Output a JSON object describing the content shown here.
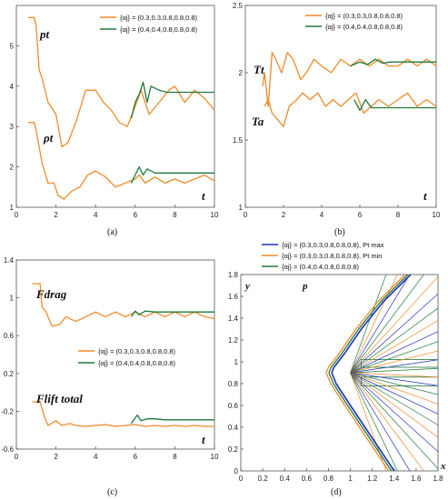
{
  "colors": {
    "orange": "#f08a2a",
    "green": "#1e7a3a",
    "blue": "#1f2fb8",
    "frame": "#555555"
  },
  "legend_ab": [
    "{αj} = (0.3,0.3,0.8,0.8,0.8)",
    "{αj} = (0.4,0.4,0.8,0.8,0.8)"
  ],
  "legend_c": [
    "{αj} = (0.3,0.3,0.8,0.8,0.8)",
    "{αj} = (0.4,0.4,0.8,0.8,0.8)"
  ],
  "legend_d": [
    "{αj} = (0.3,0.3,0.8,0.8,0.8), Pt max",
    "{αj} = (0.3,0.3,0.8,0.8,0.8), Pt min",
    "{αj} = (0.4,0.4,0.8,0.8,0.8)"
  ],
  "chart_data": [
    {
      "id": "a",
      "type": "line",
      "caption": "(a)",
      "xlabel": "t",
      "ylabel": "",
      "xlim": [
        0,
        10
      ],
      "ylim": [
        1,
        6
      ],
      "xticks": [
        "0",
        "2",
        "4",
        "6",
        "8",
        "10"
      ],
      "yticks": [
        "1",
        "2",
        "3",
        "4",
        "5"
      ],
      "annotations": [
        "pt",
        "ρt"
      ],
      "series": [
        {
          "name": "{αj} = (0.3,0.3,0.8,0.8,0.8)",
          "color": "orange",
          "curve": "pt",
          "x": [
            0.6,
            0.9,
            1.0,
            1.15,
            1.3,
            1.6,
            2.0,
            2.3,
            2.6,
            3.0,
            3.5,
            4.0,
            4.4,
            4.8,
            5.2,
            5.6,
            6.0,
            6.3,
            6.7,
            7.2,
            7.7,
            8.0,
            8.5,
            9.0,
            9.5,
            10.0
          ],
          "y": [
            5.7,
            5.7,
            5.5,
            4.4,
            4.2,
            3.6,
            3.3,
            2.5,
            2.6,
            3.1,
            3.9,
            3.9,
            3.6,
            3.4,
            3.1,
            3.0,
            3.5,
            3.9,
            3.3,
            3.6,
            3.9,
            4.0,
            3.6,
            3.9,
            3.7,
            3.4
          ]
        },
        {
          "name": "{αj} = (0.4,0.4,0.8,0.8,0.8)",
          "color": "green",
          "curve": "pt",
          "x": [
            5.8,
            6.0,
            6.2,
            6.4,
            6.6,
            6.8,
            7.2,
            7.6,
            8.0,
            8.5,
            9.0,
            10.0
          ],
          "y": [
            3.2,
            3.6,
            3.8,
            4.1,
            3.6,
            4.0,
            3.9,
            3.85,
            3.85,
            3.85,
            3.85,
            3.85
          ]
        },
        {
          "name": "{αj} = (0.3,0.3,0.8,0.8,0.8)",
          "color": "orange",
          "curve": "rho",
          "x": [
            0.6,
            0.9,
            1.0,
            1.3,
            1.6,
            1.9,
            2.1,
            2.4,
            2.8,
            3.2,
            3.6,
            4.0,
            4.5,
            5.0,
            5.5,
            6.0,
            6.2,
            6.5,
            7.0,
            7.5,
            8.0,
            8.5,
            9.0,
            9.5,
            10.0
          ],
          "y": [
            3.1,
            3.1,
            2.9,
            2.1,
            1.6,
            1.6,
            1.3,
            1.2,
            1.4,
            1.5,
            1.8,
            1.9,
            1.75,
            1.5,
            1.6,
            1.7,
            1.8,
            1.6,
            1.75,
            1.6,
            1.7,
            1.6,
            1.7,
            1.8,
            1.65
          ]
        },
        {
          "name": "{αj} = (0.4,0.4,0.8,0.8,0.8)",
          "color": "green",
          "curve": "rho",
          "x": [
            5.8,
            6.0,
            6.2,
            6.4,
            6.6,
            7.0,
            7.5,
            8.0,
            9.0,
            10.0
          ],
          "y": [
            1.6,
            1.8,
            2.0,
            1.8,
            1.95,
            1.85,
            1.85,
            1.85,
            1.85,
            1.85
          ]
        }
      ]
    },
    {
      "id": "b",
      "type": "line",
      "caption": "(b)",
      "xlabel": "t",
      "ylabel": "",
      "xlim": [
        0,
        10
      ],
      "ylim": [
        1,
        2.5
      ],
      "xticks": [
        "0",
        "2",
        "4",
        "6",
        "8",
        "10"
      ],
      "yticks": [
        "1",
        "1.5",
        "2",
        "2.5"
      ],
      "annotations": [
        "Tt",
        "Ta"
      ],
      "series": [
        {
          "name": "{αj} = (0.3,0.3,0.8,0.8,0.8)",
          "color": "orange",
          "curve": "Tt",
          "x": [
            0.9,
            1.0,
            1.2,
            1.4,
            1.6,
            1.9,
            2.2,
            2.5,
            2.9,
            3.2,
            3.6,
            4.0,
            4.5,
            5.0,
            5.5,
            6.0,
            6.5,
            7.0,
            7.5,
            8.0,
            8.5,
            9.0,
            9.5,
            10.0
          ],
          "y": [
            1.9,
            2.0,
            1.75,
            2.15,
            2.1,
            2.0,
            2.15,
            2.1,
            1.95,
            2.0,
            2.1,
            2.05,
            2.0,
            2.1,
            2.05,
            2.1,
            2.05,
            2.1,
            2.05,
            2.05,
            2.1,
            2.05,
            2.1,
            2.05
          ]
        },
        {
          "name": "{αj} = (0.4,0.4,0.8,0.8,0.8)",
          "color": "green",
          "curve": "Tt",
          "x": [
            5.5,
            6.0,
            6.4,
            6.8,
            7.2,
            7.6,
            8.0,
            8.5,
            9.0,
            10.0
          ],
          "y": [
            2.05,
            2.08,
            2.06,
            2.1,
            2.07,
            2.08,
            2.08,
            2.08,
            2.08,
            2.08
          ]
        },
        {
          "name": "{αj} = (0.3,0.3,0.8,0.8,0.8)",
          "color": "orange",
          "curve": "Ta",
          "x": [
            1.0,
            1.2,
            1.4,
            1.7,
            2.0,
            2.3,
            2.7,
            3.0,
            3.4,
            3.8,
            4.2,
            4.6,
            5.0,
            5.4,
            5.8,
            6.2,
            6.6,
            7.0,
            7.5,
            8.0,
            8.5,
            9.0,
            9.5,
            10.0
          ],
          "y": [
            1.75,
            1.8,
            1.7,
            1.65,
            1.6,
            1.75,
            1.8,
            1.85,
            1.8,
            1.85,
            1.75,
            1.8,
            1.75,
            1.8,
            1.85,
            1.7,
            1.75,
            1.8,
            1.75,
            1.8,
            1.85,
            1.75,
            1.8,
            1.75
          ]
        },
        {
          "name": "{αj} = (0.4,0.4,0.8,0.8,0.8)",
          "color": "green",
          "curve": "Ta",
          "x": [
            5.7,
            6.0,
            6.3,
            6.6,
            7.0,
            7.5,
            8.0,
            9.0,
            10.0
          ],
          "y": [
            1.8,
            1.72,
            1.8,
            1.74,
            1.74,
            1.74,
            1.74,
            1.74,
            1.74
          ]
        }
      ]
    },
    {
      "id": "c",
      "type": "line",
      "caption": "(c)",
      "xlabel": "t",
      "ylabel": "",
      "xlim": [
        0,
        10
      ],
      "ylim": [
        -0.6,
        1.4
      ],
      "xticks": [
        "0",
        "2",
        "4",
        "6",
        "8",
        "10"
      ],
      "yticks": [
        "-0.6",
        "-0.2",
        "0.2",
        "0.6",
        "1",
        "1.4"
      ],
      "annotations": [
        "Fdrag",
        "Flift total"
      ],
      "series": [
        {
          "name": "{αj} = (0.3,0.3,0.8,0.8,0.8)",
          "color": "orange",
          "curve": "drag",
          "x": [
            0.8,
            1.2,
            1.3,
            1.5,
            1.8,
            2.2,
            2.5,
            3.0,
            3.5,
            4.0,
            4.5,
            5.0,
            5.5,
            6.0,
            6.5,
            7.0,
            7.5,
            8.0,
            8.5,
            9.0,
            9.5,
            10.0
          ],
          "y": [
            1.15,
            1.15,
            0.9,
            0.85,
            0.7,
            0.72,
            0.8,
            0.75,
            0.8,
            0.85,
            0.8,
            0.85,
            0.8,
            0.85,
            0.8,
            0.85,
            0.8,
            0.85,
            0.8,
            0.85,
            0.8,
            0.78
          ]
        },
        {
          "name": "{αj} = (0.4,0.4,0.8,0.8,0.8)",
          "color": "green",
          "curve": "drag",
          "x": [
            5.8,
            6.0,
            6.2,
            6.5,
            7.0,
            7.5,
            8.0,
            9.0,
            10.0
          ],
          "y": [
            0.8,
            0.86,
            0.82,
            0.86,
            0.85,
            0.85,
            0.85,
            0.85,
            0.85
          ]
        },
        {
          "name": "{αj} = (0.3,0.3,0.8,0.8,0.8)",
          "color": "orange",
          "curve": "lift",
          "x": [
            0.8,
            1.2,
            1.4,
            1.6,
            2.0,
            2.3,
            2.7,
            3.0,
            3.5,
            4.0,
            4.5,
            5.0,
            5.5,
            6.0,
            6.5,
            7.0,
            7.5,
            8.0,
            8.5,
            9.0,
            9.5,
            10.0
          ],
          "y": [
            -0.1,
            -0.1,
            -0.25,
            -0.35,
            -0.3,
            -0.35,
            -0.33,
            -0.35,
            -0.36,
            -0.35,
            -0.34,
            -0.36,
            -0.35,
            -0.34,
            -0.36,
            -0.35,
            -0.36,
            -0.35,
            -0.36,
            -0.35,
            -0.36,
            -0.36
          ]
        },
        {
          "name": "{αj} = (0.4,0.4,0.8,0.8,0.8)",
          "color": "green",
          "curve": "lift",
          "x": [
            5.8,
            6.1,
            6.3,
            6.6,
            7.0,
            7.5,
            8.0,
            9.0,
            10.0
          ],
          "y": [
            -0.33,
            -0.24,
            -0.3,
            -0.28,
            -0.28,
            -0.29,
            -0.29,
            -0.29,
            -0.29
          ]
        }
      ]
    },
    {
      "id": "d",
      "type": "line",
      "caption": "(d)",
      "xlabel": "x",
      "ylabel": "y",
      "field_label": "p",
      "xlim": [
        0,
        1.8
      ],
      "ylim": [
        0,
        1.8
      ],
      "xticks": [
        "0",
        "0.2",
        "0.4",
        "0.6",
        "0.8",
        "1",
        "1.2",
        "1.4",
        "1.6",
        "1.8"
      ],
      "yticks": [
        "0",
        "0.2",
        "0.4",
        "0.6",
        "0.8",
        "1",
        "1.2",
        "1.4",
        "1.6",
        "1.8"
      ],
      "geometry": {
        "bars": [
          {
            "x": [
              1.1,
              1.8
            ],
            "y": [
              0.95,
              1.02
            ]
          },
          {
            "x": [
              1.1,
              1.8
            ],
            "y": [
              0.78,
              0.86
            ]
          }
        ],
        "shock_front_x": [
          1.5,
          1.25,
          1.05,
          0.9,
          0.8,
          0.78,
          0.82,
          0.95,
          1.15,
          1.35
        ],
        "shock_front_y": [
          1.8,
          1.55,
          1.3,
          1.08,
          0.95,
          0.9,
          0.8,
          0.6,
          0.3,
          0.0
        ]
      },
      "series": [
        {
          "name": "{αj} = (0.3,0.3,0.8,0.8,0.8), Pt max",
          "color": "blue"
        },
        {
          "name": "{αj} = (0.3,0.3,0.8,0.8,0.8), Pt min",
          "color": "orange"
        },
        {
          "name": "{αj} = (0.4,0.4,0.8,0.8,0.8)",
          "color": "green"
        }
      ]
    }
  ]
}
